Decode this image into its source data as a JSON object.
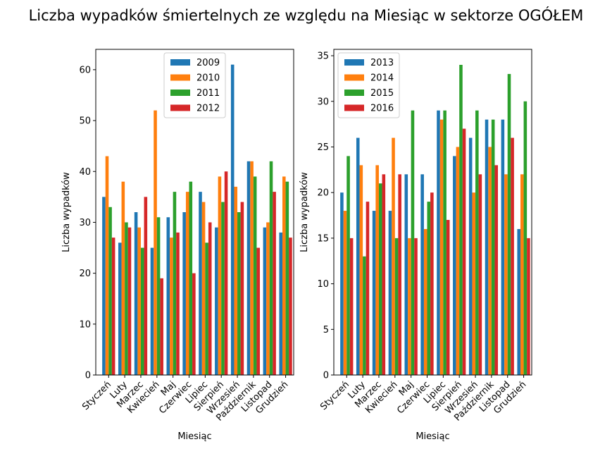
{
  "suptitle": "Liczba wypadków śmiertelnych ze względu na Miesiąc w sektorze OGÓŁEM",
  "chart_data": [
    {
      "type": "bar",
      "xlabel": "Miesiąc",
      "ylabel": "Liczba wypadków",
      "ylim": [
        0,
        64
      ],
      "yticks": [
        0,
        10,
        20,
        30,
        40,
        50,
        60
      ],
      "legend_position": "top-center",
      "categories": [
        "Styczeń",
        "Luty",
        "Marzec",
        "Kwiecień",
        "Maj",
        "Czerwiec",
        "Lipiec",
        "Sierpień",
        "Wrzesień",
        "Październik",
        "Listopad",
        "Grudzień"
      ],
      "series": [
        {
          "name": "2009",
          "color": "#1f77b4",
          "values": [
            35,
            26,
            32,
            25,
            31,
            32,
            36,
            29,
            61,
            42,
            29,
            28
          ]
        },
        {
          "name": "2010",
          "color": "#ff7f0e",
          "values": [
            43,
            38,
            29,
            52,
            27,
            36,
            34,
            39,
            37,
            42,
            30,
            39
          ]
        },
        {
          "name": "2011",
          "color": "#2ca02c",
          "values": [
            33,
            30,
            25,
            31,
            36,
            38,
            26,
            34,
            32,
            39,
            42,
            38
          ]
        },
        {
          "name": "2012",
          "color": "#d62728",
          "values": [
            27,
            29,
            35,
            19,
            28,
            20,
            30,
            40,
            34,
            25,
            36,
            27
          ]
        }
      ]
    },
    {
      "type": "bar",
      "xlabel": "Miesiąc",
      "ylabel": "Liczba wypadków",
      "ylim": [
        0,
        35.7
      ],
      "yticks": [
        0,
        5,
        10,
        15,
        20,
        25,
        30,
        35
      ],
      "legend_position": "top-left",
      "categories": [
        "Styczeń",
        "Luty",
        "Marzec",
        "Kwiecień",
        "Maj",
        "Czerwiec",
        "Lipiec",
        "Sierpień",
        "Wrzesień",
        "Październik",
        "Listopad",
        "Grudzień"
      ],
      "series": [
        {
          "name": "2013",
          "color": "#1f77b4",
          "values": [
            20,
            26,
            18,
            18,
            22,
            22,
            29,
            24,
            26,
            28,
            28,
            16
          ]
        },
        {
          "name": "2014",
          "color": "#ff7f0e",
          "values": [
            18,
            23,
            23,
            26,
            15,
            16,
            28,
            25,
            20,
            25,
            22,
            22
          ]
        },
        {
          "name": "2015",
          "color": "#2ca02c",
          "values": [
            24,
            13,
            21,
            15,
            29,
            19,
            29,
            34,
            29,
            28,
            33,
            30
          ]
        },
        {
          "name": "2016",
          "color": "#d62728",
          "values": [
            15,
            19,
            22,
            22,
            15,
            20,
            17,
            27,
            22,
            23,
            26,
            15
          ]
        }
      ]
    }
  ]
}
